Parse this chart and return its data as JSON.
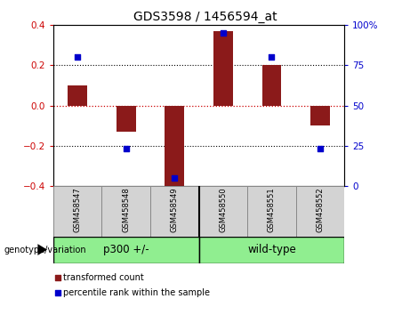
{
  "title": "GDS3598 / 1456594_at",
  "samples": [
    "GSM458547",
    "GSM458548",
    "GSM458549",
    "GSM458550",
    "GSM458551",
    "GSM458552"
  ],
  "transformed_count": [
    0.1,
    -0.13,
    -0.42,
    0.37,
    0.2,
    -0.1
  ],
  "percentile_rank": [
    80,
    23,
    5,
    95,
    80,
    23
  ],
  "groups": [
    {
      "label": "p300 +/-",
      "indices": [
        0,
        1,
        2
      ],
      "color": "#90EE90"
    },
    {
      "label": "wild-type",
      "indices": [
        3,
        4,
        5
      ],
      "color": "#90EE90"
    }
  ],
  "left_ylim": [
    -0.4,
    0.4
  ],
  "right_ylim": [
    0,
    100
  ],
  "left_yticks": [
    -0.4,
    -0.2,
    0,
    0.2,
    0.4
  ],
  "right_yticks": [
    0,
    25,
    50,
    75,
    100
  ],
  "right_yticklabels": [
    "0",
    "25",
    "50",
    "75",
    "100%"
  ],
  "bar_color": "#8B1A1A",
  "dot_color": "#0000CC",
  "bar_width": 0.4,
  "hline_color": "#CC0000",
  "dotted_color": "black",
  "left_tick_color": "#CC0000",
  "right_tick_color": "#0000CC",
  "genotype_label": "genotype/variation",
  "legend_items": [
    {
      "label": "transformed count",
      "color": "#8B1A1A"
    },
    {
      "label": "percentile rank within the sample",
      "color": "#0000CC"
    }
  ],
  "sample_box_color": "#D3D3D3",
  "sample_box_edge": "#888888",
  "group_div_color": "black",
  "bg_color": "white"
}
